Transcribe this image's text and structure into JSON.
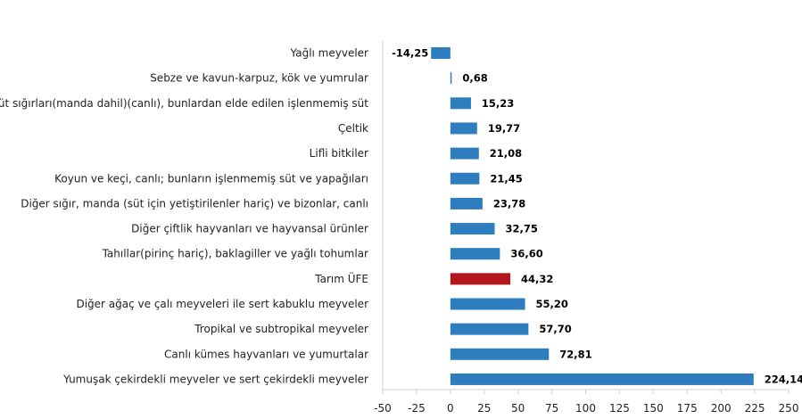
{
  "chart_data": {
    "type": "bar",
    "orientation": "horizontal",
    "title": "",
    "xlabel": "",
    "ylabel": "",
    "categories": [
      "Yağlı meyveler",
      "Sebze ve kavun-karpuz, kök ve yumrular",
      "Süt sığırları(manda dahil)(canlı), bunlardan elde edilen işlenmemiş süt",
      "Çeltik",
      "Lifli bitkiler",
      "Koyun ve keçi, canlı; bunların işlenmemiş süt ve yapağıları",
      "Diğer sığır, manda (süt için yetiştirilenler hariç) ve bizonlar, canlı",
      "Diğer çiftlik hayvanları ve hayvansal ürünler",
      "Tahıllar(pirinç hariç), baklagiller ve yağlı tohumlar",
      "Tarım ÜFE",
      "Diğer ağaç ve çalı meyveleri ile sert kabuklu meyveler",
      "Tropikal ve subtropikal meyveler",
      "Canlı kümes hayvanları ve yumurtalar",
      "Yumuşak çekirdekli meyveler ve sert çekirdekli meyveler"
    ],
    "values": [
      -14.25,
      0.68,
      15.23,
      19.77,
      21.08,
      21.45,
      23.78,
      32.75,
      36.6,
      44.32,
      55.2,
      57.7,
      72.81,
      224.14
    ],
    "value_labels": [
      "-14,25",
      "0,68",
      "15,23",
      "19,77",
      "21,08",
      "21,45",
      "23,78",
      "32,75",
      "36,60",
      "44,32",
      "55,20",
      "57,70",
      "72,81",
      "224,14"
    ],
    "highlight_index": 9,
    "xlim": [
      -50,
      250
    ],
    "ticks": [
      -50,
      -25,
      0,
      25,
      50,
      75,
      100,
      125,
      150,
      175,
      200,
      225,
      250
    ],
    "tick_labels": [
      "-50",
      "-25",
      "0",
      "25",
      "50",
      "75",
      "100",
      "125",
      "150",
      "175",
      "200",
      "225",
      "250"
    ],
    "grid": false,
    "legend": "none",
    "colors": {
      "bar": "#2e7ebf",
      "highlight": "#b5161b"
    }
  }
}
